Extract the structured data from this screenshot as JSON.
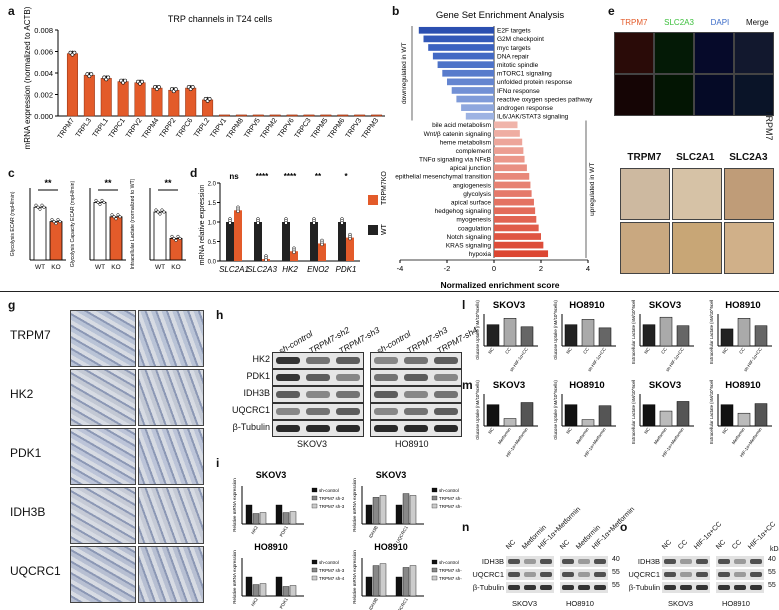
{
  "panels": {
    "a": "a",
    "b": "b",
    "c": "c",
    "d": "d",
    "e": "e",
    "g": "g",
    "h": "h",
    "i": "i",
    "l": "l",
    "m": "m",
    "n": "n",
    "o": "o"
  },
  "colors": {
    "bar_orange": "#e35b2a",
    "bar_dark": "#222222",
    "bar_blue": "#3a6bc8",
    "bar_red": "#e04a2e",
    "bar_pink": "#f4a6a0"
  },
  "chart_data": [
    {
      "id": "a",
      "type": "bar",
      "title": "TRP channels in T24 cells",
      "ylabel": "mRNA expression (normalized to ACTB)",
      "ylim": [
        0,
        0.008
      ],
      "yticks": [
        "0.000",
        "0.002",
        "0.004",
        "0.006",
        "0.008"
      ],
      "categories": [
        "TRPM7",
        "TRPL3",
        "TRPL1",
        "TRPC1",
        "TRPV2",
        "TRPM4",
        "TRPP2",
        "TRPC6",
        "TRPL2",
        "TRPV1",
        "TRPM8",
        "TRPV5",
        "TRPM2",
        "TRPV6",
        "TRPC3",
        "TRPM5",
        "TRPM6",
        "TRPV3",
        "TRPM3"
      ],
      "values": [
        0.0058,
        0.0038,
        0.0035,
        0.0032,
        0.0031,
        0.0026,
        0.0024,
        0.0026,
        0.0015,
        0.0001,
        0.0001,
        0.0001,
        0.0001,
        0.0001,
        0.0001,
        0.0001,
        0.0001,
        0.0001,
        0.0001
      ]
    },
    {
      "id": "b",
      "type": "bar",
      "title": "Gene Set Enrichment Analysis",
      "xlabel": "Normalized enrichment score",
      "xticks": [
        "-4",
        "-2",
        "0",
        "2",
        "4"
      ],
      "xlim": [
        -4,
        4
      ],
      "group_labels": [
        "downregulated in WT",
        "upregulated in WT"
      ],
      "categories": [
        "E2F targets",
        "G2M checkpoint",
        "myc targets",
        "DNA repair",
        "mitotic spindle",
        "mTORC1 signaling",
        "unfolded protein response",
        "IFNα response",
        "reactive oxygen species pathway",
        "androgen response",
        "IL6/JAK/STAT3 signaling",
        "bile acid metabolism",
        "Wnt/β catenin signaling",
        "heme metabolism",
        "complement",
        "TNFα signaling via NFκB",
        "apical junction",
        "epithelial mesenchymal transition",
        "angiogenesis",
        "glycolysis",
        "apical surface",
        "hedgehog signaling",
        "myogenesis",
        "coagulation",
        "Notch signaling",
        "KRAS signaling",
        "hypoxia"
      ],
      "values": [
        -3.2,
        -3.0,
        -2.8,
        -2.6,
        -2.4,
        -2.2,
        -2.0,
        -1.8,
        -1.6,
        -1.4,
        -1.2,
        1.0,
        1.1,
        1.2,
        1.25,
        1.3,
        1.4,
        1.5,
        1.55,
        1.6,
        1.7,
        1.75,
        1.8,
        1.9,
        2.0,
        2.1,
        2.3
      ]
    },
    {
      "id": "c",
      "type": "bar",
      "categories": [
        "WT",
        "KO"
      ],
      "subplots": [
        {
          "ylabel": "Glycolysis ECAR (mpH/min)",
          "values": [
            44,
            32
          ],
          "ylim": [
            0,
            60
          ],
          "sig": "**"
        },
        {
          "ylabel": "Glycolysis Capacity ECAR (mpH/min)",
          "values": [
            48,
            36
          ],
          "ylim": [
            0,
            60
          ],
          "sig": "**"
        },
        {
          "ylabel": "Intracellular Lactate (normalized to WT)",
          "values": [
            1.0,
            0.45
          ],
          "ylim": [
            0,
            1.5
          ],
          "sig": "**"
        }
      ]
    },
    {
      "id": "d",
      "type": "bar",
      "ylabel": "mRNA relative expression",
      "ylim": [
        0,
        2.0
      ],
      "yticks": [
        "0.0",
        "0.5",
        "1.0",
        "1.5",
        "2.0"
      ],
      "categories": [
        "SLC2A1",
        "SLC2A3",
        "HK2",
        "ENO2",
        "PDK1"
      ],
      "significance": [
        "ns",
        "****",
        "****",
        "**",
        "*"
      ],
      "series": [
        {
          "name": "WT",
          "values": [
            1.0,
            1.0,
            1.0,
            1.0,
            1.0
          ]
        },
        {
          "name": "TRPM7KO",
          "values": [
            1.3,
            0.05,
            0.25,
            0.45,
            0.6
          ]
        }
      ]
    },
    {
      "id": "i1",
      "type": "bar",
      "title": "SKOV3",
      "ylabel": "Relative mRNA expression",
      "categories": [
        "HK2",
        "PDK1"
      ],
      "series": [
        {
          "name": "sh-control",
          "values": [
            1.0,
            1.0
          ]
        },
        {
          "name": "TRPM7 sh-2",
          "values": [
            0.55,
            0.6
          ]
        },
        {
          "name": "TRPM7 sh-3",
          "values": [
            0.6,
            0.65
          ]
        }
      ]
    },
    {
      "id": "i2",
      "type": "bar",
      "title": "SKOV3",
      "ylabel": "Relative mRNA expression",
      "categories": [
        "IDH3B",
        "UQCRC1"
      ],
      "series": [
        {
          "name": "sh-control",
          "values": [
            1.0,
            1.0
          ]
        },
        {
          "name": "TRPM7 sh-3",
          "values": [
            1.4,
            1.6
          ]
        },
        {
          "name": "TRPM7 sh-4",
          "values": [
            1.5,
            1.5
          ]
        }
      ]
    },
    {
      "id": "i3",
      "type": "bar",
      "title": "HO8910",
      "ylabel": "Relative mRNA expression",
      "categories": [
        "HK2",
        "PDK1"
      ],
      "series": [
        {
          "name": "sh-control",
          "values": [
            1.0,
            1.0
          ]
        },
        {
          "name": "TRPM7 sh-3",
          "values": [
            0.6,
            0.5
          ]
        },
        {
          "name": "TRPM7 sh-4",
          "values": [
            0.65,
            0.55
          ]
        }
      ]
    },
    {
      "id": "i4",
      "type": "bar",
      "title": "HO8910",
      "ylabel": "Relative mRNA expression",
      "categories": [
        "IDH3B",
        "UQCRC1"
      ],
      "series": [
        {
          "name": "sh-control",
          "values": [
            1.0,
            1.0
          ]
        },
        {
          "name": "TRPM7 sh-3",
          "values": [
            1.6,
            1.5
          ]
        },
        {
          "name": "TRPM7 sh-4",
          "values": [
            1.7,
            1.6
          ]
        }
      ]
    },
    {
      "id": "l",
      "type": "bar",
      "subplots": [
        {
          "title": "SKOV3",
          "ylabel": "Glucose Uptake (nM/10^5cells)",
          "categories": [
            "NC",
            "CC",
            "sh-HIF-1α+CC"
          ],
          "values": [
            1.0,
            1.3,
            0.9
          ]
        },
        {
          "title": "HO8910",
          "ylabel": "Glucose Uptake (nM/10^5cells)",
          "categories": [
            "NC",
            "CC",
            "sh-HIF-1α+CC"
          ],
          "values": [
            1.0,
            1.25,
            0.85
          ]
        },
        {
          "title": "SKOV3",
          "ylabel": "Extracellular Lactate (nM/10^5cells)",
          "categories": [
            "NC",
            "CC",
            "sh-HIF-1α+CC"
          ],
          "values": [
            1.0,
            1.35,
            0.95
          ]
        },
        {
          "title": "HO8910",
          "ylabel": "Extracellular Lactate (nM/10^5cells)",
          "categories": [
            "NC",
            "CC",
            "sh-HIF-1α+CC"
          ],
          "values": [
            0.8,
            1.3,
            0.95
          ]
        }
      ]
    },
    {
      "id": "m",
      "type": "bar",
      "subplots": [
        {
          "title": "SKOV3",
          "ylabel": "Glucose Uptake (nM/10^5cells)",
          "categories": [
            "NC",
            "Metformin",
            "HIF-1α+Metformin"
          ],
          "values": [
            1.0,
            0.35,
            1.1
          ]
        },
        {
          "title": "HO8910",
          "ylabel": "Glucose Uptake (nM/10^5cells)",
          "categories": [
            "NC",
            "Metformin",
            "HIF-1α+Metformin"
          ],
          "values": [
            1.0,
            0.3,
            0.95
          ]
        },
        {
          "title": "SKOV3",
          "ylabel": "Extracellular Lactate (nM/10^5cells)",
          "categories": [
            "NC",
            "Metformin",
            "HIF-1α+Metformin"
          ],
          "values": [
            1.0,
            0.7,
            1.15
          ]
        },
        {
          "title": "HO8910",
          "ylabel": "Extracellular Lactate (nM/10^5cells)",
          "categories": [
            "NC",
            "Metformin",
            "HIF-1α+Metformin"
          ],
          "values": [
            1.0,
            0.6,
            1.05
          ]
        }
      ]
    }
  ],
  "e": {
    "headers": [
      "TRPM7",
      "SLC2A3",
      "DAPI",
      "Merge"
    ],
    "row_label": "TRPM7",
    "ihc_headers": [
      "TRPM7",
      "SLC2A1",
      "SLC2A3"
    ]
  },
  "g": {
    "rows": [
      "TRPM7",
      "HK2",
      "PDK1",
      "IDH3B",
      "UQCRC1"
    ]
  },
  "h": {
    "lanes": [
      "sh-control",
      "TRPM7-sh2",
      "TRPM7-sh3",
      "sh-control",
      "TRPM7-sh3",
      "TRPM7-sh4"
    ],
    "rows": [
      "HK2",
      "PDK1",
      "IDH3B",
      "UQCRC1",
      "β-Tubulin"
    ],
    "cells": [
      "SKOV3",
      "HO8910"
    ]
  },
  "n": {
    "lanes": [
      "NC",
      "Metformin",
      "HIF-1α+Metformin",
      "NC",
      "Metformin",
      "HIF-1α+Metformin"
    ],
    "rows": [
      "IDH3B",
      "UQCRC1",
      "β-Tubulin"
    ],
    "kda": [
      "40",
      "55",
      "55"
    ],
    "cells": [
      "SKOV3",
      "HO8910"
    ]
  },
  "o": {
    "lanes": [
      "NC",
      "CC",
      "HIF-1α+CC",
      "NC",
      "CC",
      "HIF-1α+CC"
    ],
    "rows": [
      "IDH3B",
      "UQCRC1",
      "β-Tubulin"
    ],
    "kda_unit": "kDa",
    "kda": [
      "40",
      "55",
      "55"
    ],
    "cells": [
      "SKOV3",
      "HO8910"
    ]
  }
}
